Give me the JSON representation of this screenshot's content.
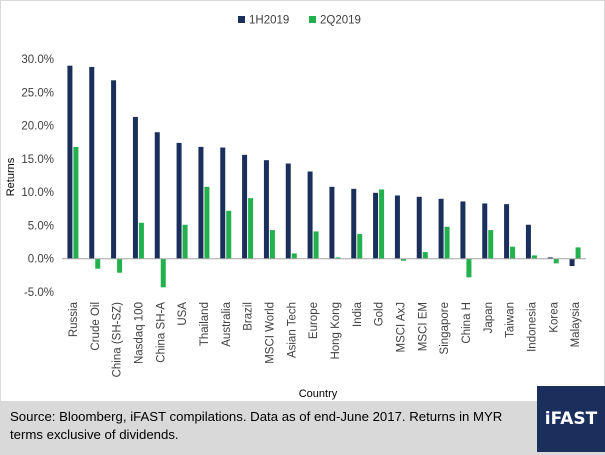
{
  "chart_data": {
    "type": "bar",
    "ylabel": "Returns",
    "xlabel": "Country",
    "ylim": [
      -5,
      30
    ],
    "ytick_step": 5,
    "ytick_format": "percent_1dp",
    "grid": false,
    "legend_position": "top-center",
    "categories": [
      "Russia",
      "Crude Oil",
      "China (SH-SZ)",
      "Nasdaq 100",
      "China SH-A",
      "USA",
      "Thailand",
      "Australia",
      "Brazil",
      "MSCI World",
      "Asian Tech",
      "Europe",
      "Hong Kong",
      "India",
      "Gold",
      "MSCI AxJ",
      "MSCI EM",
      "Singapore",
      "China H",
      "Japan",
      "Taiwan",
      "Indonesia",
      "Korea",
      "Malaysia"
    ],
    "series": [
      {
        "name": "1H2019",
        "color": "#1b2f5c",
        "values": [
          29.0,
          28.8,
          26.8,
          21.3,
          19.0,
          17.4,
          16.8,
          16.7,
          15.6,
          14.8,
          14.3,
          13.1,
          10.8,
          10.5,
          9.9,
          9.5,
          9.3,
          9.0,
          8.6,
          8.3,
          8.2,
          5.1,
          0.2,
          -1.1
        ]
      },
      {
        "name": "2Q2019",
        "color": "#22b14c",
        "values": [
          16.8,
          -1.5,
          -2.1,
          5.4,
          -4.3,
          5.1,
          10.8,
          7.2,
          9.1,
          4.3,
          0.8,
          4.1,
          0.2,
          3.7,
          10.4,
          -0.3,
          1.0,
          4.8,
          -2.8,
          4.3,
          1.8,
          0.5,
          -0.7,
          1.7
        ]
      }
    ]
  },
  "footer": {
    "source_text": "Source: Bloomberg, iFAST compilations. Data as of end-June 2017. Returns in MYR terms exclusive of dividends.",
    "logo_text": "iFAST"
  }
}
